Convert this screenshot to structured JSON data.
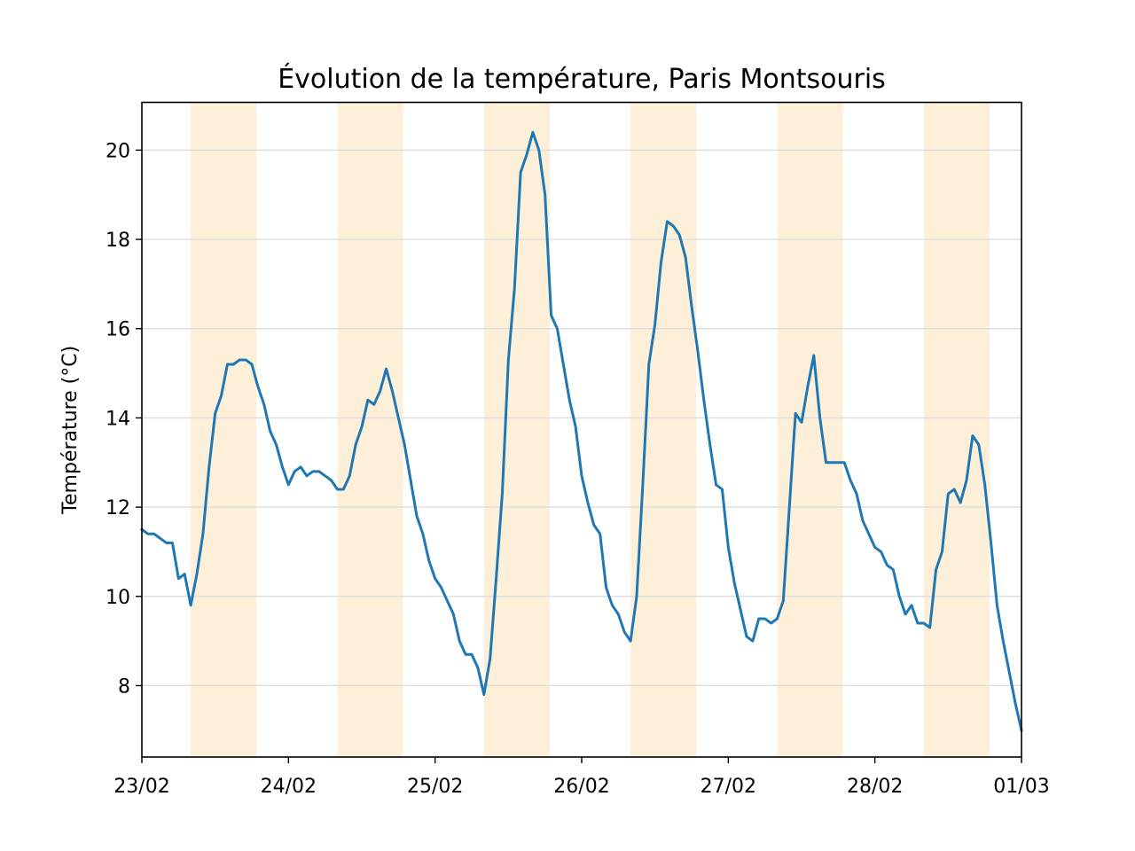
{
  "chart_data": {
    "type": "line",
    "title": "Évolution de la température, Paris Montsouris",
    "xlabel": "",
    "ylabel": "Température (°C)",
    "xlim": [
      "2021-02-23 00:00",
      "2021-03-01 00:00"
    ],
    "ylim": [
      6.4,
      21.07
    ],
    "x_ticks": [
      "23/02",
      "24/02",
      "25/02",
      "26/02",
      "27/02",
      "28/02",
      "01/03"
    ],
    "y_ticks": [
      8,
      10,
      12,
      14,
      16,
      18,
      20
    ],
    "grid": "horizontal",
    "daylight_bands": [
      [
        "2021-02-23 08:00",
        "2021-02-23 18:45"
      ],
      [
        "2021-02-24 08:00",
        "2021-02-24 18:45"
      ],
      [
        "2021-02-25 08:00",
        "2021-02-25 18:45"
      ],
      [
        "2021-02-26 08:00",
        "2021-02-26 18:45"
      ],
      [
        "2021-02-27 08:00",
        "2021-02-27 18:45"
      ],
      [
        "2021-02-28 08:00",
        "2021-02-28 18:45"
      ]
    ],
    "colors": {
      "line": "#1f77b4",
      "band": "#fdefd8",
      "grid": "#dddddd"
    },
    "series": [
      {
        "x": [
          "2021-02-23 00:00",
          "2021-02-23 01:00",
          "2021-02-23 02:00",
          "2021-02-23 03:00",
          "2021-02-23 04:00",
          "2021-02-23 05:00",
          "2021-02-23 06:00",
          "2021-02-23 07:00",
          "2021-02-23 08:00",
          "2021-02-23 09:00",
          "2021-02-23 10:00",
          "2021-02-23 11:00",
          "2021-02-23 12:00",
          "2021-02-23 13:00",
          "2021-02-23 14:00",
          "2021-02-23 15:00",
          "2021-02-23 16:00",
          "2021-02-23 17:00",
          "2021-02-23 18:00",
          "2021-02-23 19:00",
          "2021-02-23 20:00",
          "2021-02-23 21:00",
          "2021-02-23 22:00",
          "2021-02-23 23:00",
          "2021-02-24 00:00",
          "2021-02-24 01:00",
          "2021-02-24 02:00",
          "2021-02-24 03:00",
          "2021-02-24 04:00",
          "2021-02-24 05:00",
          "2021-02-24 06:00",
          "2021-02-24 07:00",
          "2021-02-24 08:00",
          "2021-02-24 09:00",
          "2021-02-24 10:00",
          "2021-02-24 11:00",
          "2021-02-24 12:00",
          "2021-02-24 13:00",
          "2021-02-24 14:00",
          "2021-02-24 15:00",
          "2021-02-24 16:00",
          "2021-02-24 17:00",
          "2021-02-24 18:00",
          "2021-02-24 19:00",
          "2021-02-24 20:00",
          "2021-02-24 21:00",
          "2021-02-24 22:00",
          "2021-02-24 23:00",
          "2021-02-25 00:00",
          "2021-02-25 01:00",
          "2021-02-25 02:00",
          "2021-02-25 03:00",
          "2021-02-25 04:00",
          "2021-02-25 05:00",
          "2021-02-25 06:00",
          "2021-02-25 07:00",
          "2021-02-25 08:00",
          "2021-02-25 09:00",
          "2021-02-25 10:00",
          "2021-02-25 11:00",
          "2021-02-25 12:00",
          "2021-02-25 13:00",
          "2021-02-25 14:00",
          "2021-02-25 15:00",
          "2021-02-25 16:00",
          "2021-02-25 17:00",
          "2021-02-25 18:00",
          "2021-02-25 19:00",
          "2021-02-25 20:00",
          "2021-02-25 21:00",
          "2021-02-25 22:00",
          "2021-02-25 23:00",
          "2021-02-26 00:00",
          "2021-02-26 01:00",
          "2021-02-26 02:00",
          "2021-02-26 03:00",
          "2021-02-26 04:00",
          "2021-02-26 05:00",
          "2021-02-26 06:00",
          "2021-02-26 07:00",
          "2021-02-26 08:00",
          "2021-02-26 09:00",
          "2021-02-26 10:00",
          "2021-02-26 11:00",
          "2021-02-26 12:00",
          "2021-02-26 13:00",
          "2021-02-26 14:00",
          "2021-02-26 15:00",
          "2021-02-26 16:00",
          "2021-02-26 17:00",
          "2021-02-26 18:00",
          "2021-02-26 19:00",
          "2021-02-26 20:00",
          "2021-02-26 21:00",
          "2021-02-26 22:00",
          "2021-02-26 23:00",
          "2021-02-27 00:00",
          "2021-02-27 01:00",
          "2021-02-27 02:00",
          "2021-02-27 03:00",
          "2021-02-27 04:00",
          "2021-02-27 05:00",
          "2021-02-27 06:00",
          "2021-02-27 07:00",
          "2021-02-27 08:00",
          "2021-02-27 09:00",
          "2021-02-27 10:00",
          "2021-02-27 11:00",
          "2021-02-27 12:00",
          "2021-02-27 13:00",
          "2021-02-27 14:00",
          "2021-02-27 15:00",
          "2021-02-27 16:00",
          "2021-02-27 17:00",
          "2021-02-27 18:00",
          "2021-02-27 19:00",
          "2021-02-27 20:00",
          "2021-02-27 21:00",
          "2021-02-27 22:00",
          "2021-02-27 23:00",
          "2021-02-28 00:00",
          "2021-02-28 01:00",
          "2021-02-28 02:00",
          "2021-02-28 03:00",
          "2021-02-28 04:00",
          "2021-02-28 05:00",
          "2021-02-28 06:00",
          "2021-02-28 07:00",
          "2021-02-28 08:00",
          "2021-02-28 09:00",
          "2021-02-28 10:00",
          "2021-02-28 11:00",
          "2021-02-28 12:00",
          "2021-02-28 13:00",
          "2021-02-28 14:00",
          "2021-02-28 15:00",
          "2021-02-28 16:00",
          "2021-02-28 17:00",
          "2021-02-28 18:00",
          "2021-02-28 19:00",
          "2021-02-28 20:00",
          "2021-02-28 21:00",
          "2021-02-28 22:00",
          "2021-02-28 23:00",
          "2021-03-01 00:00"
        ],
        "values": [
          11.5,
          11.4,
          11.4,
          11.3,
          11.2,
          11.2,
          10.4,
          10.5,
          9.8,
          10.5,
          11.4,
          12.9,
          14.1,
          14.5,
          15.2,
          15.2,
          15.3,
          15.3,
          15.2,
          14.7,
          14.3,
          13.7,
          13.4,
          12.9,
          12.5,
          12.8,
          12.9,
          12.7,
          12.8,
          12.8,
          12.7,
          12.6,
          12.4,
          12.4,
          12.7,
          13.4,
          13.8,
          14.4,
          14.3,
          14.6,
          15.1,
          14.6,
          14.0,
          13.4,
          12.6,
          11.8,
          11.4,
          10.8,
          10.4,
          10.2,
          9.9,
          9.6,
          9.0,
          8.7,
          8.7,
          8.4,
          7.8,
          8.6,
          10.4,
          12.3,
          15.3,
          16.9,
          19.5,
          19.9,
          20.4,
          20.0,
          19.0,
          16.3,
          16.0,
          15.2,
          14.4,
          13.8,
          12.7,
          12.1,
          11.6,
          11.4,
          10.2,
          9.8,
          9.6,
          9.2,
          9.0,
          10.0,
          12.5,
          15.2,
          16.1,
          17.5,
          18.4,
          18.3,
          18.1,
          17.6,
          16.5,
          15.5,
          14.4,
          13.4,
          12.5,
          12.4,
          11.1,
          10.3,
          9.7,
          9.1,
          9.0,
          9.5,
          9.5,
          9.4,
          9.5,
          9.9,
          12.0,
          14.1,
          13.9,
          14.7,
          15.4,
          14.0,
          13.0,
          13.0,
          13.0,
          13.0,
          12.6,
          12.3,
          11.7,
          11.4,
          11.1,
          11.0,
          10.7,
          10.6,
          10.0,
          9.6,
          9.8,
          9.4,
          9.4,
          9.3,
          10.6,
          11.0,
          12.3,
          12.4,
          12.1,
          12.6,
          13.6,
          13.4,
          12.5,
          11.2,
          9.8,
          9.0,
          8.3,
          7.6,
          7.0
        ]
      }
    ]
  }
}
